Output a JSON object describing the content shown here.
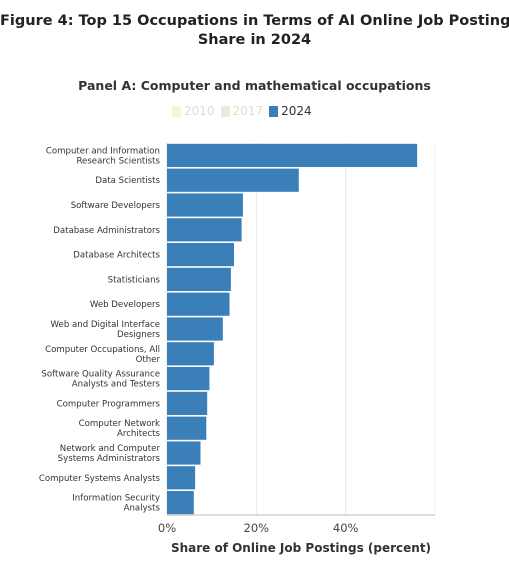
{
  "figure": {
    "title_line1": "Figure 4: Top 15 Occupations in Terms of AI Online Job Postings",
    "title_line2": "Share in 2024"
  },
  "panel": {
    "title": "Panel A: Computer and mathematical occupations"
  },
  "legend": [
    {
      "label": "2010",
      "color": "#faf3d8",
      "active": false
    },
    {
      "label": "2017",
      "color": "#e9ecd8",
      "active": false
    },
    {
      "label": "2024",
      "color": "#3b7fb9",
      "active": true
    }
  ],
  "chart_data": {
    "type": "bar",
    "orientation": "horizontal",
    "categories": [
      [
        "Computer and Information",
        "Research Scientists"
      ],
      [
        "Data Scientists"
      ],
      [
        "Software Developers"
      ],
      [
        "Database Administrators"
      ],
      [
        "Database Architects"
      ],
      [
        "Statisticians"
      ],
      [
        "Web Developers"
      ],
      [
        "Web and Digital Interface",
        "Designers"
      ],
      [
        "Computer Occupations, All",
        "Other"
      ],
      [
        "Software Quality Assurance",
        "Analysts and Testers"
      ],
      [
        "Computer Programmers"
      ],
      [
        "Computer Network",
        "Architects"
      ],
      [
        "Network and Computer",
        "Systems Administrators"
      ],
      [
        "Computer Systems Analysts"
      ],
      [
        "Information Security",
        "Analysts"
      ]
    ],
    "series": [
      {
        "name": "2024",
        "color": "#3b7fb9",
        "values": [
          56,
          29.5,
          17,
          16.7,
          15,
          14.3,
          14,
          12.5,
          10.5,
          9.5,
          9,
          8.8,
          7.5,
          6.3,
          6
        ]
      }
    ],
    "xlim": [
      0,
      60
    ],
    "xticks": [
      0,
      20,
      40
    ],
    "xtick_labels": [
      "0%",
      "20%",
      "40%"
    ],
    "xlabel": "Share of Online Job Postings (percent)",
    "grid": "vertical"
  }
}
